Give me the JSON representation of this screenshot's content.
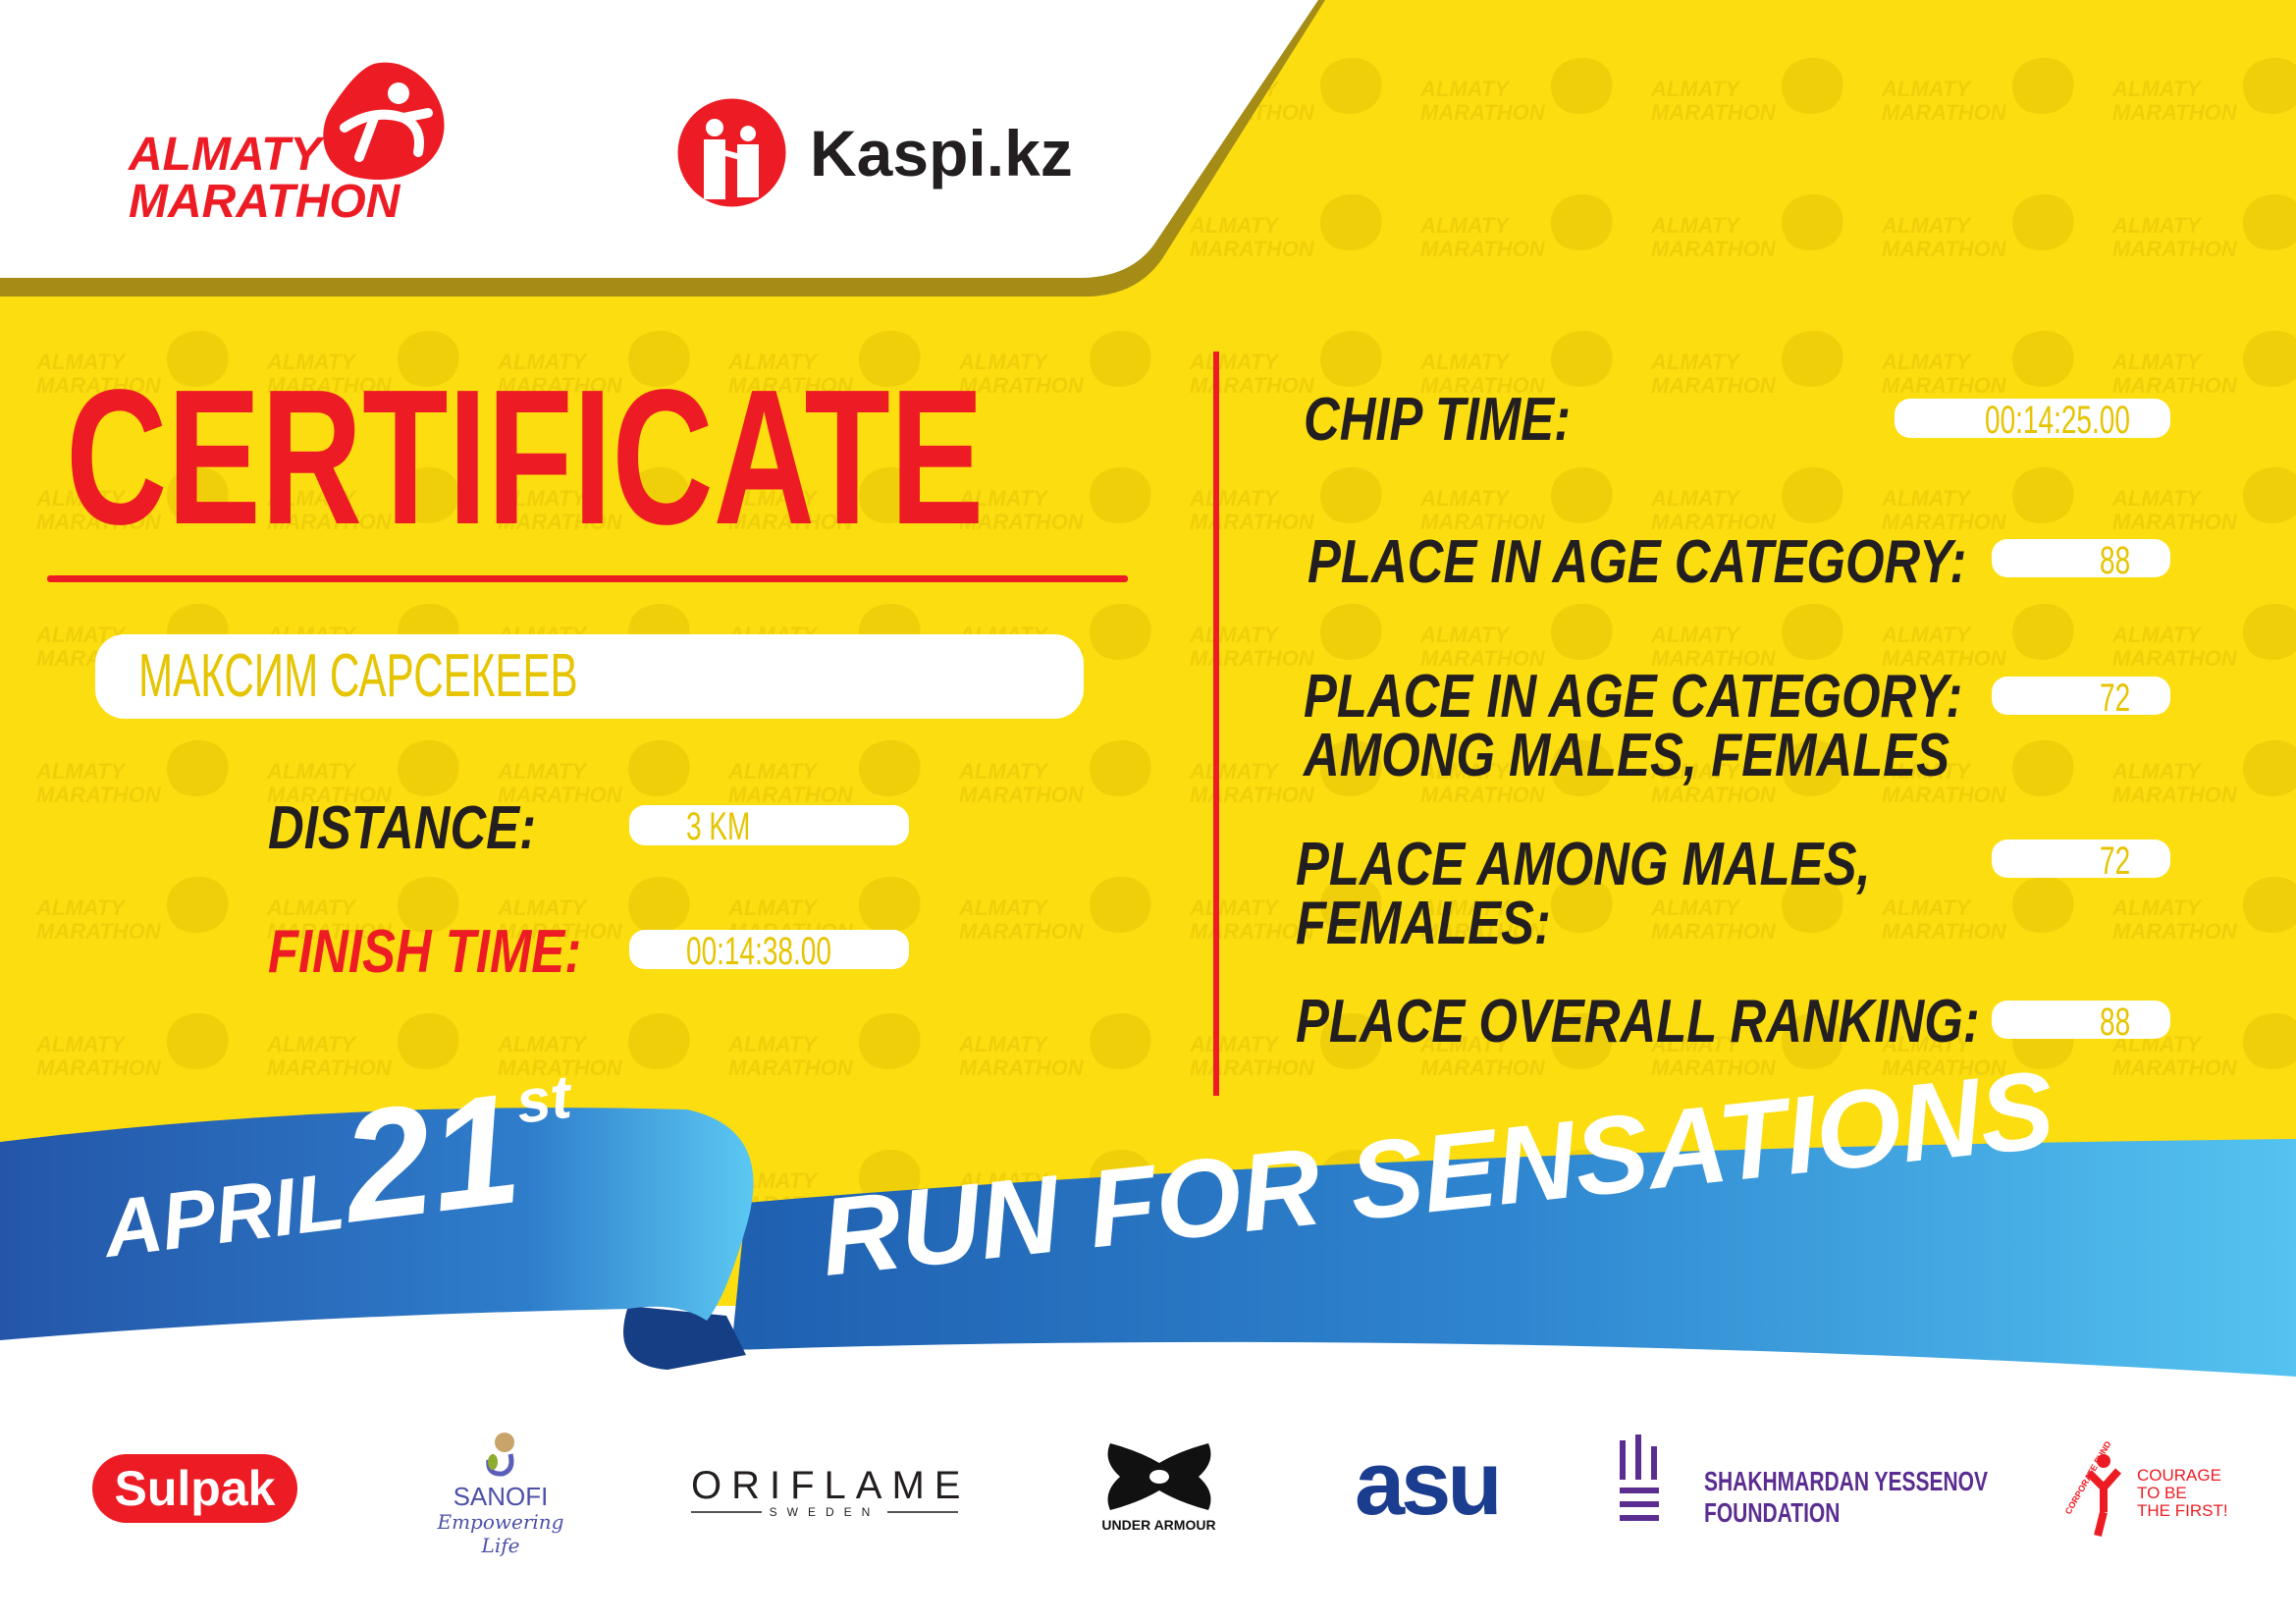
{
  "colors": {
    "background": "#fcdd10",
    "red": "#ed1c24",
    "blue": "#2a7cc7",
    "light_blue": "#4fc1ee",
    "value_text": "#e6c400",
    "label_text": "#231f20"
  },
  "watermark": {
    "line1": "ALMATY",
    "line2": "MARATHON"
  },
  "header": {
    "logo": {
      "line1": "ALMATY",
      "line2": "MARATHON",
      "icon": "runner-drop-icon"
    },
    "partner": {
      "name": "Kaspi.kz",
      "icon": "kaspi-people-icon"
    }
  },
  "certificate": {
    "title": "CERTIFICATE",
    "participant_name": "МАКСИМ САРСЕКЕЕВ",
    "distance_label": "DISTANCE:",
    "distance_value": "3 KM",
    "finish_label": "FINISH TIME:",
    "finish_value": "00:14:38.00"
  },
  "results": [
    {
      "label": "CHIP TIME:",
      "value": "00:14:25.00"
    },
    {
      "label": "PLACE IN AGE CATEGORY:",
      "value": "88"
    },
    {
      "label_line1": "PLACE IN AGE CATEGORY:",
      "label_line2": "AMONG MALES, FEMALES",
      "value": "72"
    },
    {
      "label_line1": "PLACE AMONG MALES,",
      "label_line2": "FEMALES:",
      "value": "72"
    },
    {
      "label": "PLACE OVERALL RANKING:",
      "value": "88"
    }
  ],
  "banner": {
    "month": "APRIL",
    "day": "21",
    "suffix": "st",
    "slogan": "RUN FOR SENSATIONS"
  },
  "sponsors": {
    "sulpak": "Sulpak",
    "sanofi": "SANOFI",
    "sanofi_tagline": "Empowering Life",
    "oriflame": "ORIFLAME",
    "oriflame_sub": "SWEDEN",
    "under_armour": "UNDER ARMOUR",
    "asu": "asu",
    "yessenov_line1": "SHAKHMARDAN YESSENOV",
    "yessenov_line2": "FOUNDATION",
    "courage_arc": "CORPORATE FUND",
    "courage_line1": "COURAGE",
    "courage_line2": "TO BE",
    "courage_line3": "THE FIRST!"
  }
}
